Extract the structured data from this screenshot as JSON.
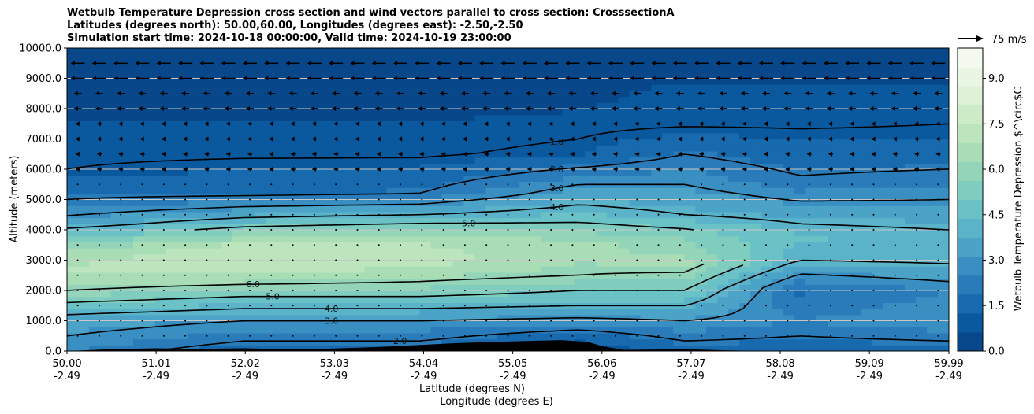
{
  "chart_data": {
    "type": "heatmap",
    "title_lines": [
      "Wetbulb Temperature Depression cross section and wind vectors parallel to cross section: CrosssectionA",
      "Latitudes (degrees north): 50.00,60.00, Longitudes (degrees east): -2.50,-2.50",
      "Simulation start time: 2024-10-18 00:00:00, Valid time: 2024-10-19 23:00:00"
    ],
    "ylabel": "Altitude (meters)",
    "xlabel_lines": [
      "Latitude (degrees N)",
      "Longitude (degrees E)"
    ],
    "ylim": [
      0,
      10000
    ],
    "y_ticks": [
      "0.0",
      "1000.0",
      "2000.0",
      "3000.0",
      "4000.0",
      "5000.0",
      "6000.0",
      "7000.0",
      "8000.0",
      "9000.0",
      "10000.0"
    ],
    "x_ticks": [
      {
        "lat": "50.00",
        "lon": "-2.49"
      },
      {
        "lat": "51.01",
        "lon": "-2.49"
      },
      {
        "lat": "52.02",
        "lon": "-2.49"
      },
      {
        "lat": "53.03",
        "lon": "-2.49"
      },
      {
        "lat": "54.04",
        "lon": "-2.49"
      },
      {
        "lat": "55.05",
        "lon": "-2.49"
      },
      {
        "lat": "56.06",
        "lon": "-2.49"
      },
      {
        "lat": "57.07",
        "lon": "-2.49"
      },
      {
        "lat": "58.08",
        "lon": "-2.49"
      },
      {
        "lat": "59.09",
        "lon": "-2.49"
      },
      {
        "lat": "59.99",
        "lon": "-2.49"
      }
    ],
    "colorbar": {
      "label": "Wetbulb Temperature Depression $^\\circ$C",
      "min": 0,
      "max": 10,
      "ticks": [
        "0.0",
        "1.5",
        "3.0",
        "4.5",
        "6.0",
        "7.5",
        "9.0"
      ],
      "colors": [
        "#08478a",
        "#0a589d",
        "#166aad",
        "#2a7bb9",
        "#3a8fc2",
        "#4ba3c8",
        "#5ab3c8",
        "#6bc2c6",
        "#7fcdbe",
        "#94d5b9",
        "#a8ddb5",
        "#bce5be",
        "#cdebc7",
        "#dcf1d6",
        "#e9f6e4",
        "#f4faef"
      ]
    },
    "wind_key": {
      "label": "75 m/s"
    },
    "contour_labels": [
      "1.0",
      "2.0",
      "3.0",
      "4.0",
      "5.0",
      "6.0"
    ],
    "field_summary": [
      {
        "lat": 50.0,
        "profile": [
          [
            0,
            2.5
          ],
          [
            1000,
            3.5
          ],
          [
            2000,
            6.0
          ],
          [
            2600,
            7.0
          ],
          [
            3300,
            6.5
          ],
          [
            4200,
            3.5
          ],
          [
            5000,
            2.0
          ],
          [
            6000,
            1.0
          ],
          [
            8000,
            0.5
          ],
          [
            10000,
            0.4
          ]
        ]
      },
      {
        "lat": 52.0,
        "profile": [
          [
            0,
            1.5
          ],
          [
            1000,
            3.0
          ],
          [
            2000,
            5.5
          ],
          [
            2800,
            7.5
          ],
          [
            3500,
            7.0
          ],
          [
            4400,
            4.0
          ],
          [
            5200,
            1.8
          ],
          [
            6500,
            0.9
          ],
          [
            8000,
            0.5
          ],
          [
            10000,
            0.4
          ]
        ]
      },
      {
        "lat": 54.0,
        "profile": [
          [
            0,
            1.5
          ],
          [
            1000,
            3.0
          ],
          [
            2000,
            5.5
          ],
          [
            3000,
            7.2
          ],
          [
            3700,
            6.8
          ],
          [
            4500,
            4.0
          ],
          [
            5200,
            2.0
          ],
          [
            6500,
            0.9
          ],
          [
            8000,
            0.5
          ],
          [
            10000,
            0.4
          ]
        ]
      },
      {
        "lat": 55.8,
        "profile": [
          [
            0,
            0.8
          ],
          [
            500,
            1.5
          ],
          [
            1500,
            4.0
          ],
          [
            2500,
            6.0
          ],
          [
            3500,
            6.5
          ],
          [
            4500,
            4.5
          ],
          [
            5500,
            3.0
          ],
          [
            6500,
            1.2
          ],
          [
            8000,
            0.6
          ],
          [
            10000,
            0.4
          ]
        ]
      },
      {
        "lat": 57.0,
        "profile": [
          [
            0,
            1.5
          ],
          [
            1000,
            3.0
          ],
          [
            2000,
            5.0
          ],
          [
            2900,
            6.5
          ],
          [
            3800,
            5.5
          ],
          [
            4500,
            4.0
          ],
          [
            5500,
            3.0
          ],
          [
            6500,
            2.0
          ],
          [
            7500,
            0.9
          ],
          [
            10000,
            0.4
          ]
        ]
      },
      {
        "lat": 58.3,
        "profile": [
          [
            0,
            1.5
          ],
          [
            1000,
            2.5
          ],
          [
            2000,
            1.8
          ],
          [
            3000,
            4.0
          ],
          [
            3800,
            4.5
          ],
          [
            4600,
            3.5
          ],
          [
            5500,
            2.2
          ],
          [
            6500,
            1.5
          ],
          [
            7500,
            0.9
          ],
          [
            10000,
            0.4
          ]
        ]
      },
      {
        "lat": 59.99,
        "profile": [
          [
            0,
            1.5
          ],
          [
            1000,
            3.0
          ],
          [
            2000,
            2.5
          ],
          [
            3000,
            4.2
          ],
          [
            4000,
            4.0
          ],
          [
            5000,
            3.0
          ],
          [
            6000,
            2.0
          ],
          [
            7000,
            1.2
          ],
          [
            8000,
            0.8
          ],
          [
            10000,
            0.4
          ]
        ]
      }
    ],
    "terrain_note": "black terrain along bottom from 50.0 to ~56.06"
  }
}
